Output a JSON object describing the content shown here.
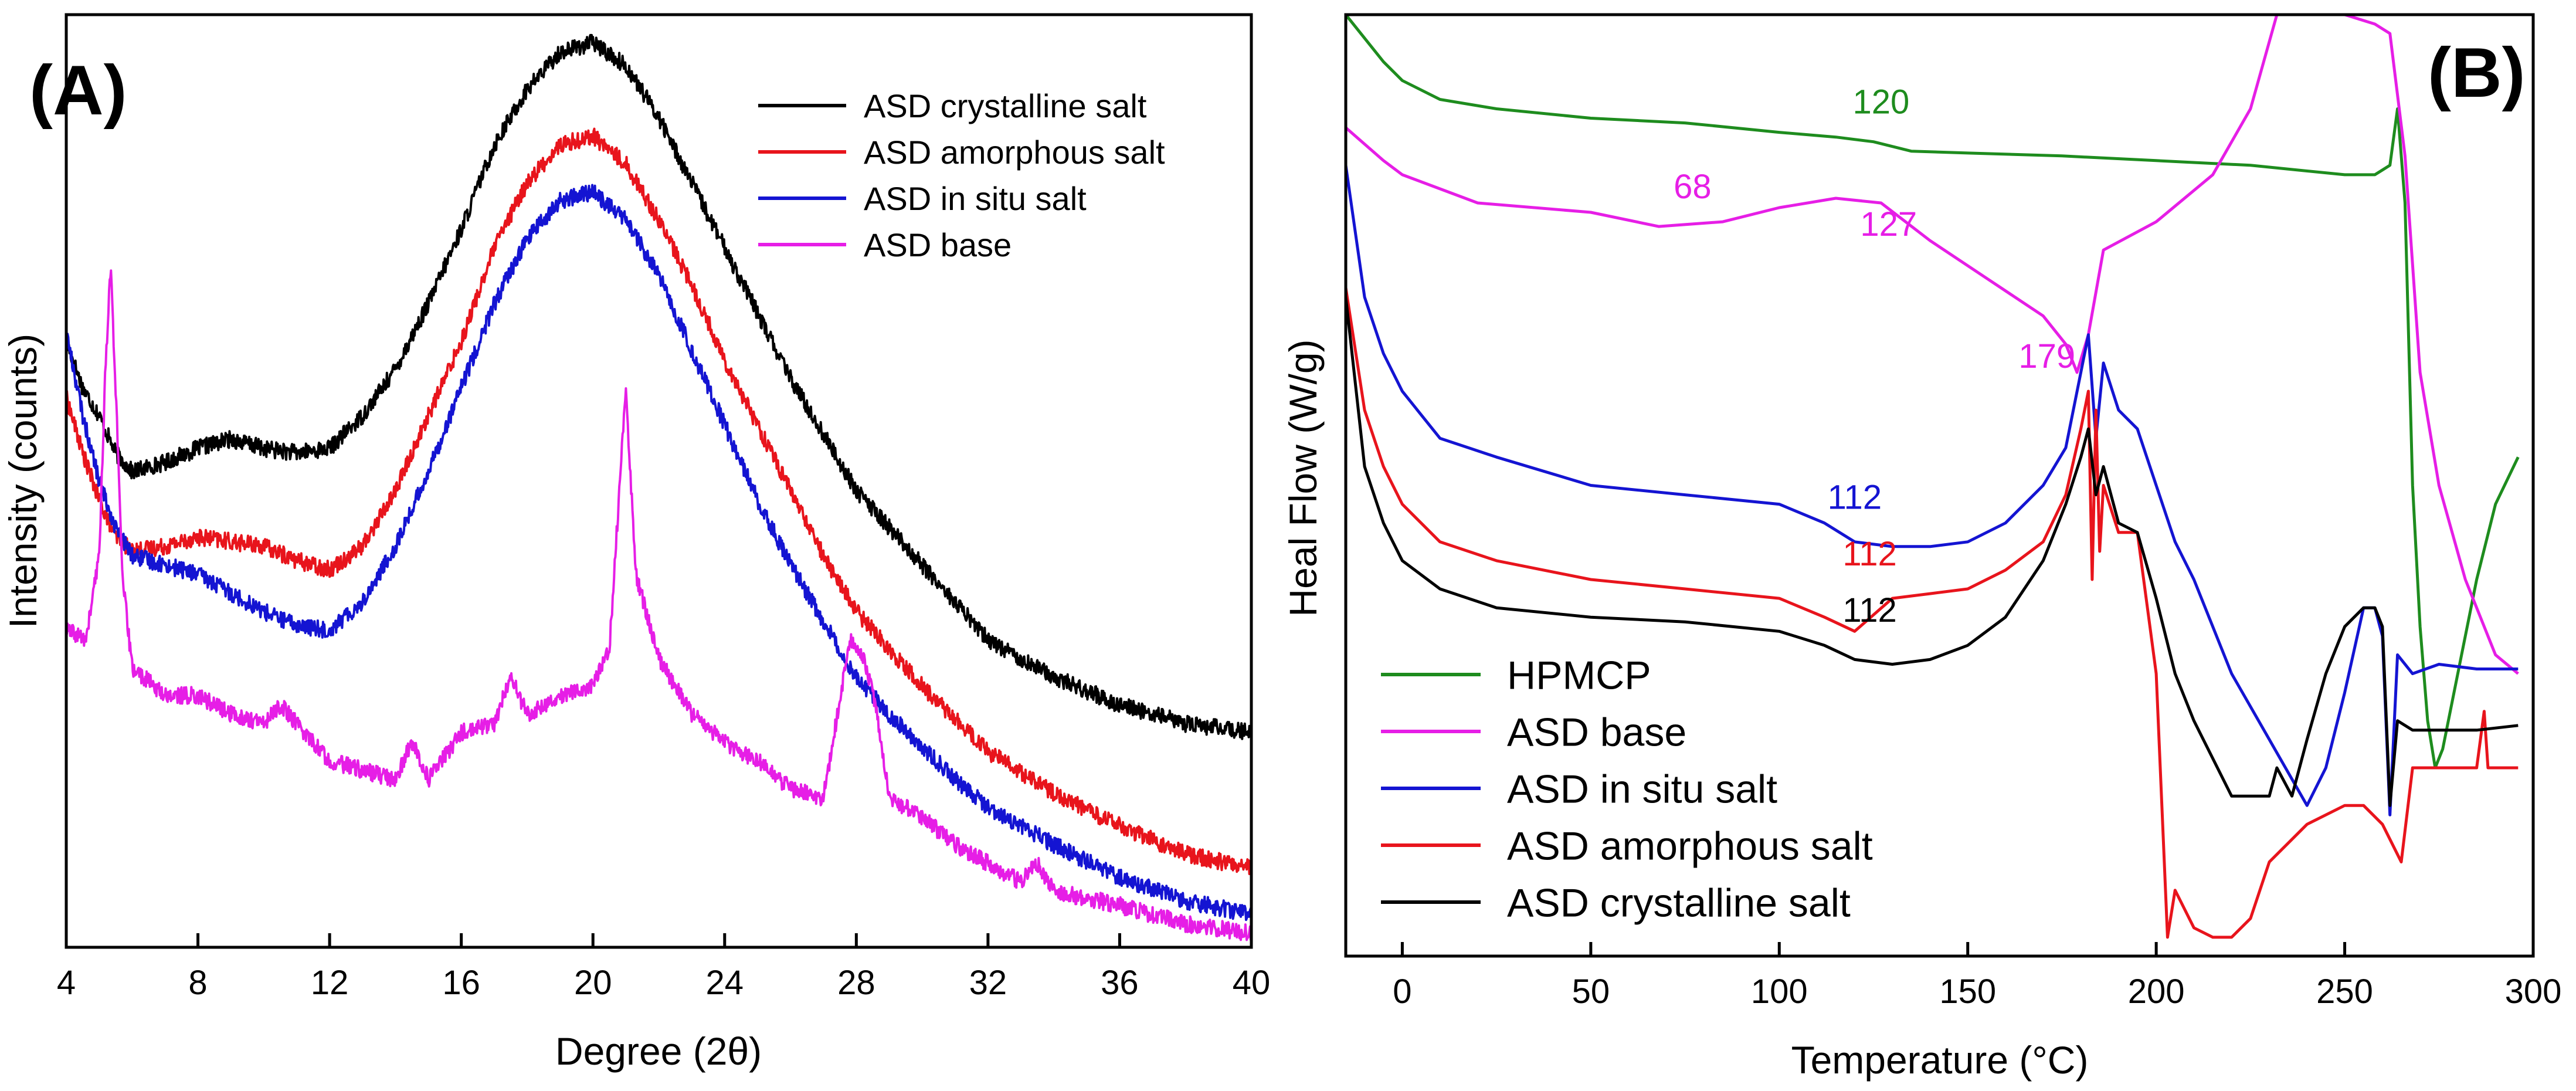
{
  "chart_data": [
    {
      "panel_label": "(A)",
      "type": "line",
      "xlabel": "Degree (2θ)",
      "ylabel": "Intensity (counts)",
      "xlim": [
        4,
        40
      ],
      "ylim": [
        0,
        1
      ],
      "y_ticks_labeled": false,
      "x_ticks": [
        "4",
        "8",
        "12",
        "16",
        "20",
        "24",
        "28",
        "32",
        "36",
        "40"
      ],
      "legend_position": "top-right",
      "series": [
        {
          "name": "ASD crystalline salt",
          "color": "#000000",
          "x": [
            4,
            4.5,
            5,
            5.5,
            6,
            7,
            8,
            9,
            10,
            11,
            12,
            13,
            14,
            15,
            16,
            17,
            18,
            19,
            20,
            21,
            22,
            23,
            24,
            25,
            26,
            27,
            28,
            29,
            30,
            31,
            32,
            34,
            36,
            38,
            40
          ],
          "y": [
            0.65,
            0.6,
            0.57,
            0.53,
            0.51,
            0.52,
            0.535,
            0.545,
            0.535,
            0.53,
            0.535,
            0.57,
            0.62,
            0.69,
            0.77,
            0.86,
            0.92,
            0.96,
            0.97,
            0.945,
            0.89,
            0.82,
            0.75,
            0.68,
            0.61,
            0.55,
            0.49,
            0.45,
            0.41,
            0.37,
            0.33,
            0.29,
            0.26,
            0.24,
            0.23
          ]
        },
        {
          "name": "ASD amorphous salt",
          "color": "#e8141c",
          "x": [
            4,
            4.5,
            5,
            5.5,
            6,
            7,
            8,
            9,
            10,
            11,
            12,
            13,
            14,
            15,
            16,
            17,
            18,
            19,
            20,
            21,
            22,
            23,
            24,
            25,
            26,
            27,
            28,
            29,
            30,
            31,
            32,
            34,
            36,
            38,
            40
          ],
          "y": [
            0.59,
            0.53,
            0.48,
            0.44,
            0.425,
            0.43,
            0.44,
            0.435,
            0.43,
            0.415,
            0.405,
            0.43,
            0.49,
            0.57,
            0.65,
            0.75,
            0.82,
            0.86,
            0.87,
            0.84,
            0.78,
            0.71,
            0.63,
            0.56,
            0.49,
            0.42,
            0.36,
            0.32,
            0.28,
            0.245,
            0.21,
            0.165,
            0.13,
            0.1,
            0.085
          ]
        },
        {
          "name": "ASD in situ salt",
          "color": "#1414d2",
          "x": [
            4,
            4.5,
            5,
            5.5,
            6,
            7,
            8,
            9,
            10,
            11,
            12,
            13,
            14,
            15,
            16,
            17,
            18,
            19,
            20,
            21,
            22,
            23,
            24,
            25,
            26,
            27,
            28,
            29,
            30,
            31,
            32,
            34,
            36,
            38,
            40
          ],
          "y": [
            0.66,
            0.57,
            0.5,
            0.45,
            0.42,
            0.41,
            0.4,
            0.38,
            0.36,
            0.345,
            0.34,
            0.37,
            0.43,
            0.51,
            0.6,
            0.69,
            0.76,
            0.8,
            0.81,
            0.78,
            0.72,
            0.64,
            0.56,
            0.48,
            0.41,
            0.35,
            0.29,
            0.25,
            0.215,
            0.18,
            0.15,
            0.11,
            0.075,
            0.05,
            0.035
          ]
        },
        {
          "name": "ASD base",
          "color": "#e61ee6",
          "x": [
            4,
            4.6,
            5,
            5.2,
            5.35,
            5.5,
            5.7,
            6,
            7,
            8,
            9,
            10,
            10.5,
            11,
            12,
            13,
            14,
            14.5,
            15,
            16,
            17,
            17.5,
            18,
            19,
            20,
            20.5,
            21,
            21.3,
            22,
            23,
            24,
            25,
            26,
            27,
            27.8,
            28.2,
            28.6,
            29,
            30,
            31,
            32,
            33,
            33.5,
            34,
            36,
            38,
            40
          ],
          "y": [
            0.34,
            0.33,
            0.42,
            0.63,
            0.73,
            0.6,
            0.4,
            0.3,
            0.27,
            0.27,
            0.25,
            0.24,
            0.26,
            0.24,
            0.2,
            0.19,
            0.18,
            0.22,
            0.18,
            0.23,
            0.24,
            0.29,
            0.25,
            0.27,
            0.28,
            0.32,
            0.6,
            0.4,
            0.31,
            0.25,
            0.22,
            0.2,
            0.17,
            0.16,
            0.33,
            0.31,
            0.26,
            0.16,
            0.14,
            0.11,
            0.09,
            0.07,
            0.09,
            0.06,
            0.045,
            0.025,
            0.015
          ]
        }
      ]
    },
    {
      "panel_label": "(B)",
      "type": "line",
      "xlabel": "Temperature (°C)",
      "ylabel": "Heal Flow (W/g)",
      "xlim": [
        -15,
        300
      ],
      "x_ticks": [
        0,
        50,
        100,
        150,
        200,
        250,
        300
      ],
      "ylim": [
        0,
        1
      ],
      "y_ticks_labeled": false,
      "legend_position": "bottom-left",
      "annotations": [
        {
          "text": "120",
          "x": 127,
          "y": 0.895,
          "color": "#1e8c1e"
        },
        {
          "text": "68",
          "x": 77,
          "y": 0.805,
          "color": "#e61ee6"
        },
        {
          "text": "127",
          "x": 129,
          "y": 0.765,
          "color": "#e61ee6"
        },
        {
          "text": "179",
          "x": 171,
          "y": 0.625,
          "color": "#e61ee6"
        },
        {
          "text": "112",
          "x": 120,
          "y": 0.475,
          "color": "#1414d2"
        },
        {
          "text": "112",
          "x": 124,
          "y": 0.415,
          "color": "#e8141c"
        },
        {
          "text": "112",
          "x": 124,
          "y": 0.355,
          "color": "#000000"
        }
      ],
      "series": [
        {
          "name": "HPMCP",
          "color": "#1e8c1e",
          "x": [
            -15,
            -5,
            0,
            10,
            25,
            50,
            75,
            100,
            115,
            125,
            135,
            150,
            175,
            200,
            225,
            250,
            258,
            262,
            264,
            266,
            268,
            270,
            272,
            274,
            276,
            280,
            285,
            290,
            296
          ],
          "y": [
            1.0,
            0.95,
            0.93,
            0.91,
            0.9,
            0.89,
            0.885,
            0.875,
            0.87,
            0.865,
            0.855,
            0.853,
            0.85,
            0.845,
            0.84,
            0.83,
            0.83,
            0.84,
            0.9,
            0.8,
            0.5,
            0.35,
            0.25,
            0.2,
            0.22,
            0.3,
            0.4,
            0.48,
            0.53
          ]
        },
        {
          "name": "ASD base",
          "color": "#e61ee6",
          "x": [
            -15,
            -5,
            0,
            20,
            50,
            68,
            85,
            100,
            115,
            127,
            140,
            155,
            170,
            176,
            179,
            182,
            186,
            200,
            215,
            225,
            232,
            240,
            250,
            258,
            262,
            266,
            270,
            275,
            282,
            290,
            296
          ],
          "y": [
            0.88,
            0.845,
            0.83,
            0.8,
            0.79,
            0.775,
            0.78,
            0.795,
            0.805,
            0.8,
            0.76,
            0.72,
            0.68,
            0.65,
            0.62,
            0.66,
            0.75,
            0.78,
            0.83,
            0.9,
            1.0,
            1.0,
            1.0,
            0.99,
            0.98,
            0.85,
            0.62,
            0.5,
            0.4,
            0.32,
            0.3
          ]
        },
        {
          "name": "ASD in situ salt",
          "color": "#1414d2",
          "x": [
            -15,
            -10,
            -5,
            0,
            10,
            25,
            50,
            75,
            100,
            112,
            120,
            130,
            140,
            150,
            160,
            170,
            176,
            180,
            182,
            184,
            186,
            190,
            195,
            200,
            205,
            210,
            220,
            230,
            240,
            245,
            250,
            255,
            258,
            260,
            262,
            264,
            268,
            275,
            285,
            296
          ],
          "y": [
            0.84,
            0.7,
            0.64,
            0.6,
            0.55,
            0.53,
            0.5,
            0.49,
            0.48,
            0.46,
            0.44,
            0.435,
            0.435,
            0.44,
            0.46,
            0.5,
            0.54,
            0.62,
            0.66,
            0.55,
            0.63,
            0.58,
            0.56,
            0.5,
            0.44,
            0.4,
            0.3,
            0.23,
            0.16,
            0.2,
            0.28,
            0.37,
            0.37,
            0.34,
            0.15,
            0.32,
            0.3,
            0.31,
            0.305,
            0.305
          ]
        },
        {
          "name": "ASD amorphous salt",
          "color": "#e8141c",
          "x": [
            -15,
            -10,
            -5,
            0,
            10,
            25,
            50,
            75,
            100,
            112,
            120,
            130,
            140,
            150,
            160,
            170,
            176,
            180,
            182,
            183,
            184,
            185,
            186,
            190,
            195,
            200,
            203,
            205,
            210,
            215,
            220,
            225,
            230,
            240,
            250,
            255,
            260,
            265,
            268,
            275,
            285,
            287,
            288,
            296
          ],
          "y": [
            0.71,
            0.58,
            0.52,
            0.48,
            0.44,
            0.42,
            0.4,
            0.39,
            0.38,
            0.36,
            0.345,
            0.38,
            0.385,
            0.39,
            0.41,
            0.44,
            0.49,
            0.56,
            0.6,
            0.4,
            0.58,
            0.43,
            0.5,
            0.45,
            0.45,
            0.3,
            0.02,
            0.07,
            0.03,
            0.02,
            0.02,
            0.04,
            0.1,
            0.14,
            0.16,
            0.16,
            0.14,
            0.1,
            0.2,
            0.2,
            0.2,
            0.26,
            0.2,
            0.2
          ]
        },
        {
          "name": "ASD crystalline salt",
          "color": "#000000",
          "x": [
            -15,
            -10,
            -5,
            0,
            10,
            25,
            50,
            75,
            100,
            112,
            120,
            130,
            140,
            150,
            160,
            170,
            176,
            180,
            182,
            184,
            186,
            190,
            195,
            200,
            205,
            210,
            220,
            230,
            232,
            236,
            240,
            245,
            250,
            255,
            258,
            260,
            262,
            264,
            268,
            275,
            285,
            296
          ],
          "y": [
            0.7,
            0.52,
            0.46,
            0.42,
            0.39,
            0.37,
            0.36,
            0.355,
            0.345,
            0.33,
            0.315,
            0.31,
            0.315,
            0.33,
            0.36,
            0.42,
            0.48,
            0.53,
            0.56,
            0.49,
            0.52,
            0.46,
            0.45,
            0.38,
            0.3,
            0.25,
            0.17,
            0.17,
            0.2,
            0.17,
            0.23,
            0.3,
            0.35,
            0.37,
            0.37,
            0.35,
            0.16,
            0.25,
            0.24,
            0.24,
            0.24,
            0.245
          ]
        }
      ]
    }
  ]
}
